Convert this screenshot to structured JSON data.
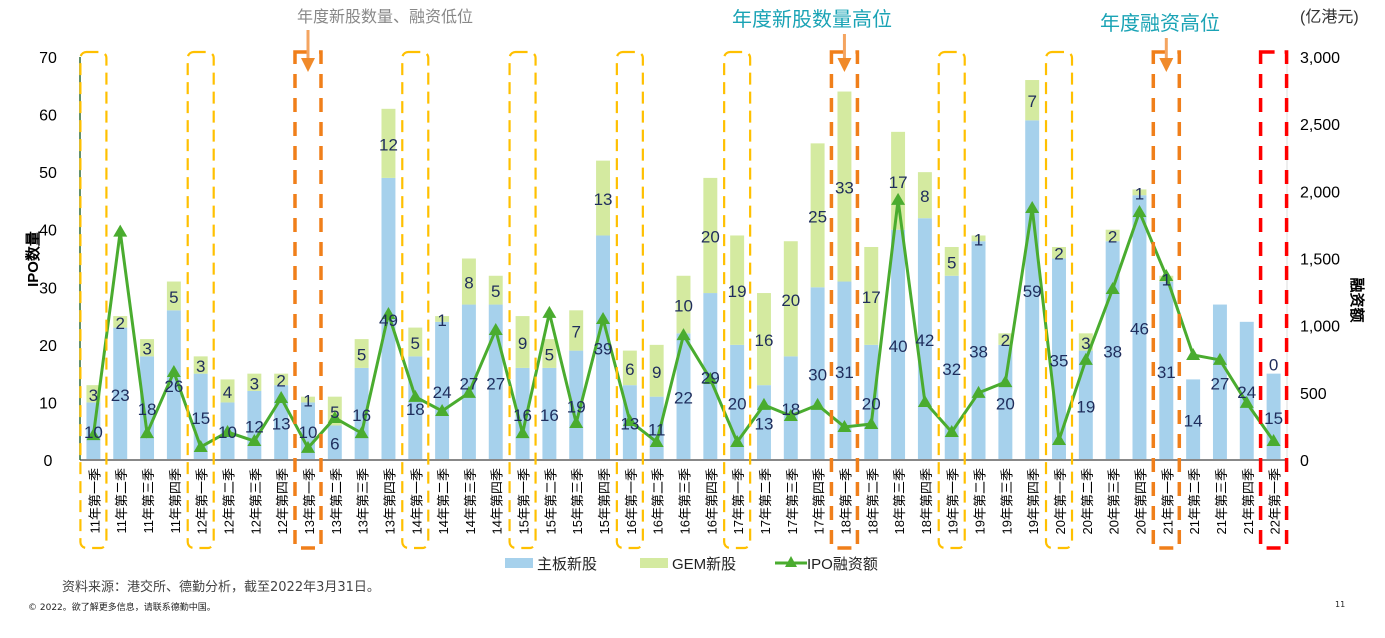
{
  "chart_data": {
    "type": "bar+line",
    "categories": [
      "11年第一季",
      "11年第二季",
      "11年第三季",
      "11年第四季",
      "12年第一季",
      "12年第二季",
      "12年第三季",
      "12年第四季",
      "13年第一季",
      "13年第二季",
      "13年第三季",
      "13年第四季",
      "14年第一季",
      "14年第二季",
      "14年第三季",
      "14年第四季",
      "15年第一季",
      "15年第二季",
      "15年第三季",
      "15年第四季",
      "16年第一季",
      "16年第二季",
      "16年第三季",
      "16年第四季",
      "17年第一季",
      "17年第二季",
      "17年第三季",
      "17年第四季",
      "18年第一季",
      "18年第二季",
      "18年第三季",
      "18年第四季",
      "19年第一季",
      "19年第二季",
      "19年第三季",
      "19年第四季",
      "20年第一季",
      "20年第二季",
      "20年第三季",
      "20年第四季",
      "21年第一季",
      "21年第二季",
      "21年第三季",
      "21年第四季",
      "22年第一季"
    ],
    "series": [
      {
        "name": "主板新股",
        "type": "stacked-bar",
        "axis": "left",
        "color": "#a6d1ec",
        "values": [
          10,
          23,
          18,
          26,
          15,
          10,
          12,
          13,
          10,
          6,
          16,
          49,
          18,
          24,
          27,
          27,
          16,
          16,
          19,
          39,
          13,
          11,
          22,
          29,
          20,
          13,
          18,
          30,
          31,
          20,
          40,
          42,
          32,
          38,
          20,
          59,
          35,
          19,
          38,
          46,
          31,
          14,
          27,
          24,
          15
        ]
      },
      {
        "name": "GEM新股",
        "type": "stacked-bar",
        "axis": "left",
        "color": "#d4eaa0",
        "values": [
          3,
          2,
          3,
          5,
          3,
          4,
          3,
          2,
          1,
          5,
          5,
          12,
          5,
          1,
          8,
          5,
          9,
          5,
          7,
          13,
          6,
          9,
          10,
          20,
          19,
          16,
          20,
          25,
          33,
          17,
          17,
          8,
          5,
          1,
          2,
          7,
          2,
          3,
          2,
          1,
          1,
          null,
          null,
          null,
          0
        ]
      },
      {
        "name": "IPO融资额",
        "type": "line",
        "axis": "right",
        "color": "#4aac2f",
        "values": [
          185,
          1700,
          200,
          655,
          97,
          208,
          141,
          462,
          90,
          313,
          200,
          1087,
          470,
          365,
          500,
          968,
          200,
          1095,
          275,
          1050,
          290,
          134,
          930,
          603,
          134,
          410,
          328,
          410,
          246,
          268,
          1936,
          432,
          208,
          500,
          580,
          1876,
          149,
          745,
          1273,
          1846,
          1370,
          782,
          745,
          425,
          141
        ]
      }
    ],
    "ylabel_left": "IPO数量",
    "ylabel_right": "融资额",
    "right_unit": "(亿港元)",
    "ylim_left": [
      0,
      70
    ],
    "ylim_right": [
      0,
      3000
    ],
    "yticks_left": [
      "0",
      "10",
      "20",
      "30",
      "40",
      "50",
      "60",
      "70"
    ],
    "yticks_right": [
      "0",
      "500",
      "1,000",
      "1,500",
      "2,000",
      "2,500",
      "3,000"
    ],
    "grid": false,
    "legend_position": "bottom",
    "highlights": {
      "yellow": [
        "11年第一季",
        "12年第一季",
        "14年第一季",
        "15年第一季",
        "16年第一季",
        "17年第一季",
        "19年第一季",
        "20年第一季"
      ],
      "orange": [
        "13年第一季",
        "18年第一季",
        "21年第一季"
      ],
      "red": [
        "22年第一季"
      ]
    },
    "annotations": [
      {
        "text": "年度新股数量、融资低位",
        "target": "13年第一季",
        "color": "#888888"
      },
      {
        "text": "年度新股数量高位",
        "target": "18年第一季",
        "color": "#1aa3b5"
      },
      {
        "text": "年度融资高位",
        "target": "21年第一季",
        "color": "#1aa3b5"
      }
    ]
  },
  "footer": {
    "source": "资料来源：港交所、德勤分析，截至2022年3月31日。",
    "copyright": "© 2022。欲了解更多信息，请联系德勤中国。",
    "page": "11"
  }
}
